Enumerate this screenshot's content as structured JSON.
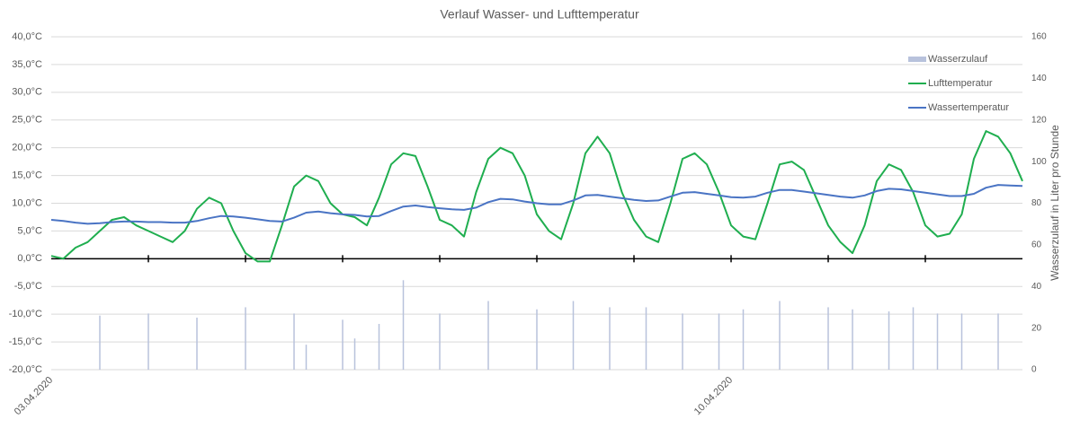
{
  "chart_data": {
    "type": "line",
    "title": "Verlauf Wasser- und Lufttemperatur",
    "y2_label": "Wasserzulauf in Liter pro Stunde",
    "categories": [
      "03.04.2020",
      null,
      null,
      null,
      null,
      null,
      null,
      null,
      null,
      null,
      null,
      null,
      null,
      null,
      null,
      null,
      null,
      null,
      null,
      null,
      null,
      null,
      null,
      null,
      null,
      null,
      null,
      null,
      null,
      null,
      null,
      null,
      null,
      null,
      null,
      null,
      null,
      null,
      null,
      null,
      null,
      null,
      null,
      null,
      null,
      null,
      null,
      null,
      null,
      null,
      null,
      null,
      null,
      null,
      null,
      null,
      "10.04.2020",
      null,
      null,
      null,
      null,
      null,
      null,
      null,
      null,
      null,
      null,
      null,
      null,
      null,
      null,
      null,
      null,
      null,
      null,
      null,
      null,
      null,
      null,
      null,
      null
    ],
    "series": [
      {
        "name": "Wasserzulauf",
        "type": "bar",
        "axis": "y2",
        "color": "#b8c2dc",
        "values": [
          null,
          null,
          null,
          null,
          26,
          null,
          null,
          null,
          27,
          null,
          null,
          null,
          25,
          null,
          null,
          null,
          30,
          null,
          null,
          null,
          27,
          12,
          null,
          null,
          24,
          15,
          null,
          22,
          null,
          43,
          null,
          null,
          27,
          null,
          null,
          null,
          33,
          null,
          null,
          null,
          29,
          null,
          null,
          33,
          null,
          null,
          30,
          null,
          null,
          30,
          null,
          null,
          27,
          null,
          null,
          27,
          null,
          29,
          null,
          null,
          33,
          null,
          null,
          null,
          30,
          null,
          29,
          null,
          null,
          28,
          null,
          30,
          null,
          27,
          null,
          27,
          null,
          null,
          27,
          null,
          null
        ]
      },
      {
        "name": "Lufttemperatur",
        "type": "line",
        "color": "#1fae4f",
        "values": [
          0.5,
          0,
          2,
          3,
          5,
          7,
          7.5,
          6,
          5,
          4,
          3,
          5,
          9,
          11,
          10,
          5,
          1,
          -0.5,
          -0.5,
          6,
          13,
          15,
          14,
          10,
          8,
          7.5,
          6,
          11,
          17,
          19,
          18.5,
          13,
          7,
          6,
          4,
          12,
          18,
          20,
          19,
          15,
          8,
          5,
          3.5,
          10,
          19,
          22,
          19,
          12,
          7,
          4,
          3,
          10,
          18,
          19,
          17,
          12,
          6,
          4,
          3.5,
          10,
          17,
          17.5,
          16,
          11,
          6,
          3,
          1,
          6,
          14,
          17,
          16,
          12,
          6,
          4,
          4.5,
          8,
          18,
          23,
          22,
          19,
          14
        ]
      },
      {
        "name": "Wassertemperatur",
        "type": "line",
        "color": "#4a74c4",
        "values": [
          7,
          6.8,
          6.5,
          6.3,
          6.4,
          6.6,
          6.7,
          6.7,
          6.6,
          6.6,
          6.5,
          6.5,
          6.8,
          7.3,
          7.7,
          7.6,
          7.4,
          7.1,
          6.8,
          6.7,
          7.4,
          8.3,
          8.5,
          8.2,
          8.0,
          7.9,
          7.6,
          7.7,
          8.6,
          9.4,
          9.6,
          9.3,
          9.1,
          8.9,
          8.8,
          9.2,
          10.2,
          10.8,
          10.7,
          10.3,
          10.0,
          9.8,
          9.8,
          10.5,
          11.4,
          11.5,
          11.2,
          10.9,
          10.6,
          10.4,
          10.5,
          11.2,
          11.9,
          12.0,
          11.7,
          11.4,
          11.1,
          11.0,
          11.2,
          11.9,
          12.4,
          12.4,
          12.1,
          11.8,
          11.5,
          11.2,
          11.0,
          11.4,
          12.2,
          12.6,
          12.5,
          12.2,
          11.9,
          11.6,
          11.3,
          11.3,
          11.7,
          12.8,
          13.3,
          13.2,
          13.1
        ]
      }
    ],
    "ylim": [
      -20,
      40
    ],
    "yticks": [
      {
        "value": -20,
        "label": "-20,0°C"
      },
      {
        "value": -15,
        "label": "-15,0°C"
      },
      {
        "value": -10,
        "label": "-10,0°C"
      },
      {
        "value": -5,
        "label": "-5,0°C"
      },
      {
        "value": 0,
        "label": "0,0°C"
      },
      {
        "value": 5,
        "label": "5,0°C"
      },
      {
        "value": 10,
        "label": "10,0°C"
      },
      {
        "value": 15,
        "label": "15,0°C"
      },
      {
        "value": 20,
        "label": "20,0°C"
      },
      {
        "value": 25,
        "label": "25,0°C"
      },
      {
        "value": 30,
        "label": "30,0°C"
      },
      {
        "value": 35,
        "label": "35,0°C"
      },
      {
        "value": 40,
        "label": "40,0°C"
      }
    ],
    "y2lim": [
      0,
      160
    ],
    "y2ticks": [
      0,
      20,
      40,
      60,
      80,
      100,
      120,
      140,
      160
    ],
    "grid": true,
    "legend": "upper right"
  }
}
